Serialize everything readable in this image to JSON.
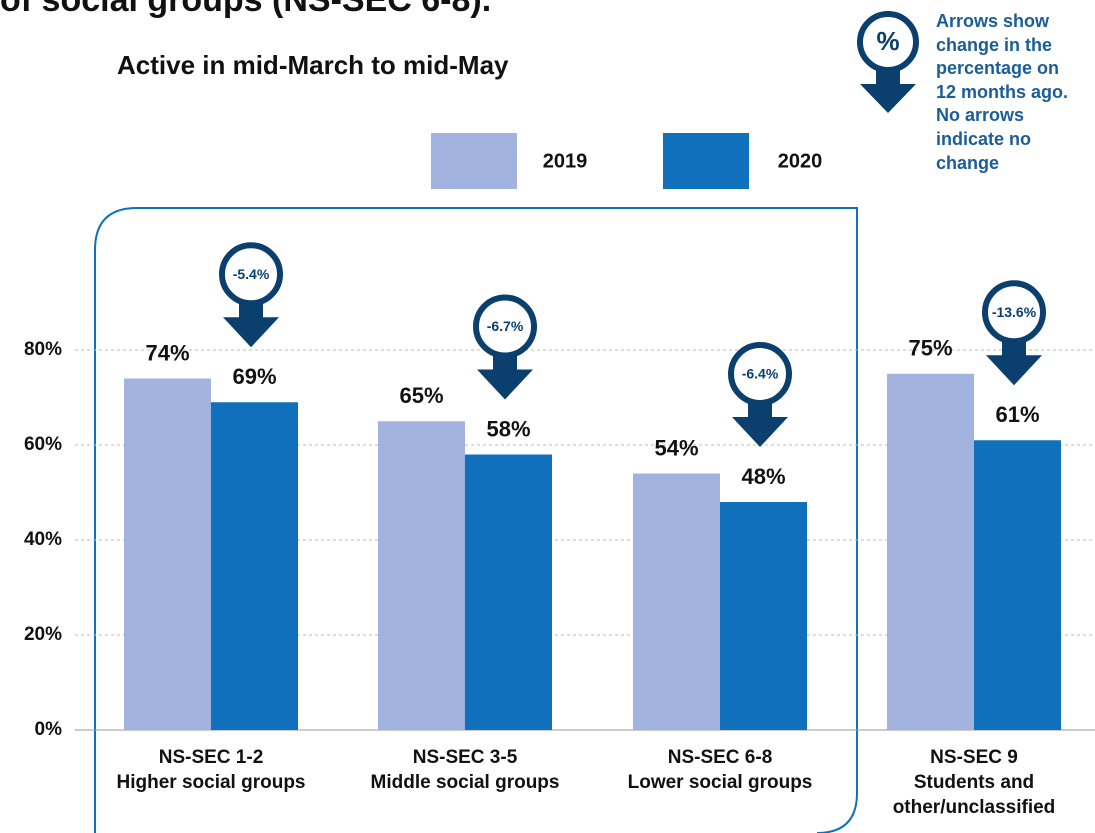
{
  "chart_data": {
    "type": "bar",
    "title": "of social groups (NS-SEC 6-8).",
    "subtitle": "Active in mid-March to mid-May",
    "categories": [
      "NS-SEC 1-2\nHigher social groups",
      "NS-SEC 3-5\nMiddle social groups",
      "NS-SEC 6-8\nLower social groups",
      "NS-SEC 9\nStudents and\nother/unclassified"
    ],
    "series": [
      {
        "name": "2019",
        "color": "#a2b3df",
        "values": [
          74,
          65,
          54,
          75
        ],
        "value_labels": [
          "74%",
          "65%",
          "54%",
          "75%"
        ]
      },
      {
        "name": "2020",
        "color": "#1170bb",
        "values": [
          69,
          58,
          48,
          61
        ],
        "value_labels": [
          "69%",
          "58%",
          "48%",
          "61%"
        ]
      }
    ],
    "changes": {
      "color": "#0b3f6e",
      "values": [
        -5.4,
        -6.7,
        -6.4,
        -13.6
      ],
      "value_labels": [
        "-5.4%",
        "-6.7%",
        "-6.4%",
        "-13.6%"
      ]
    },
    "note_icon": "%",
    "note": "Arrows show\nchange in the\npercentage on\n12 months ago.\nNo arrows\nindicate no\nchange",
    "ylim": [
      0,
      100
    ],
    "yticks": [
      {
        "value": 0,
        "label": "0%"
      },
      {
        "value": 20,
        "label": "20%"
      },
      {
        "value": 40,
        "label": "40%"
      },
      {
        "value": 60,
        "label": "60%"
      },
      {
        "value": 80,
        "label": "80%"
      }
    ],
    "grid": true
  }
}
